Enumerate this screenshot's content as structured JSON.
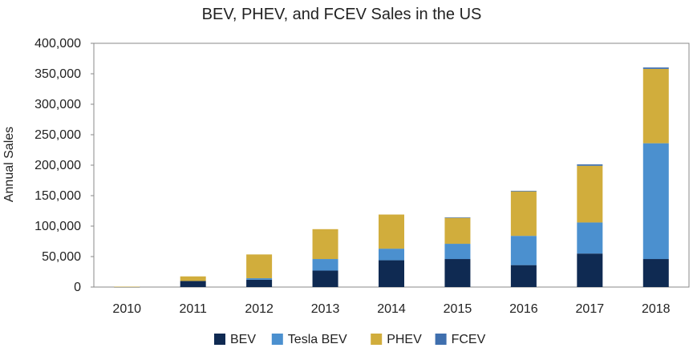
{
  "chart_data": {
    "type": "bar",
    "stacked": true,
    "title": "BEV, PHEV, and FCEV Sales in the US",
    "xlabel": "",
    "ylabel": "Annual Sales",
    "ylim": [
      0,
      400000
    ],
    "y_ticks": [
      0,
      50000,
      100000,
      150000,
      200000,
      250000,
      300000,
      350000,
      400000
    ],
    "y_tick_labels": [
      "0",
      "50,000",
      "100,000",
      "150,000",
      "200,000",
      "250,000",
      "300,000",
      "350,000",
      "400,000"
    ],
    "categories": [
      "2010",
      "2011",
      "2012",
      "2013",
      "2014",
      "2015",
      "2016",
      "2017",
      "2018"
    ],
    "series": [
      {
        "name": "BEV",
        "color": "#0f2a52",
        "values": [
          300,
          10000,
          12000,
          27000,
          44000,
          46000,
          36000,
          55000,
          46000
        ]
      },
      {
        "name": "Tesla BEV",
        "color": "#4b90cf",
        "values": [
          0,
          0,
          2500,
          19000,
          19000,
          25000,
          48000,
          51000,
          190000
        ]
      },
      {
        "name": "PHEV",
        "color": "#d1ad3c",
        "values": [
          300,
          7500,
          39000,
          49000,
          56000,
          43000,
          73000,
          93000,
          122000
        ]
      },
      {
        "name": "FCEV",
        "color": "#3f6fae",
        "values": [
          0,
          0,
          0,
          0,
          0,
          100,
          1000,
          2300,
          2300
        ]
      }
    ],
    "legend_position": "bottom",
    "grid": false
  }
}
